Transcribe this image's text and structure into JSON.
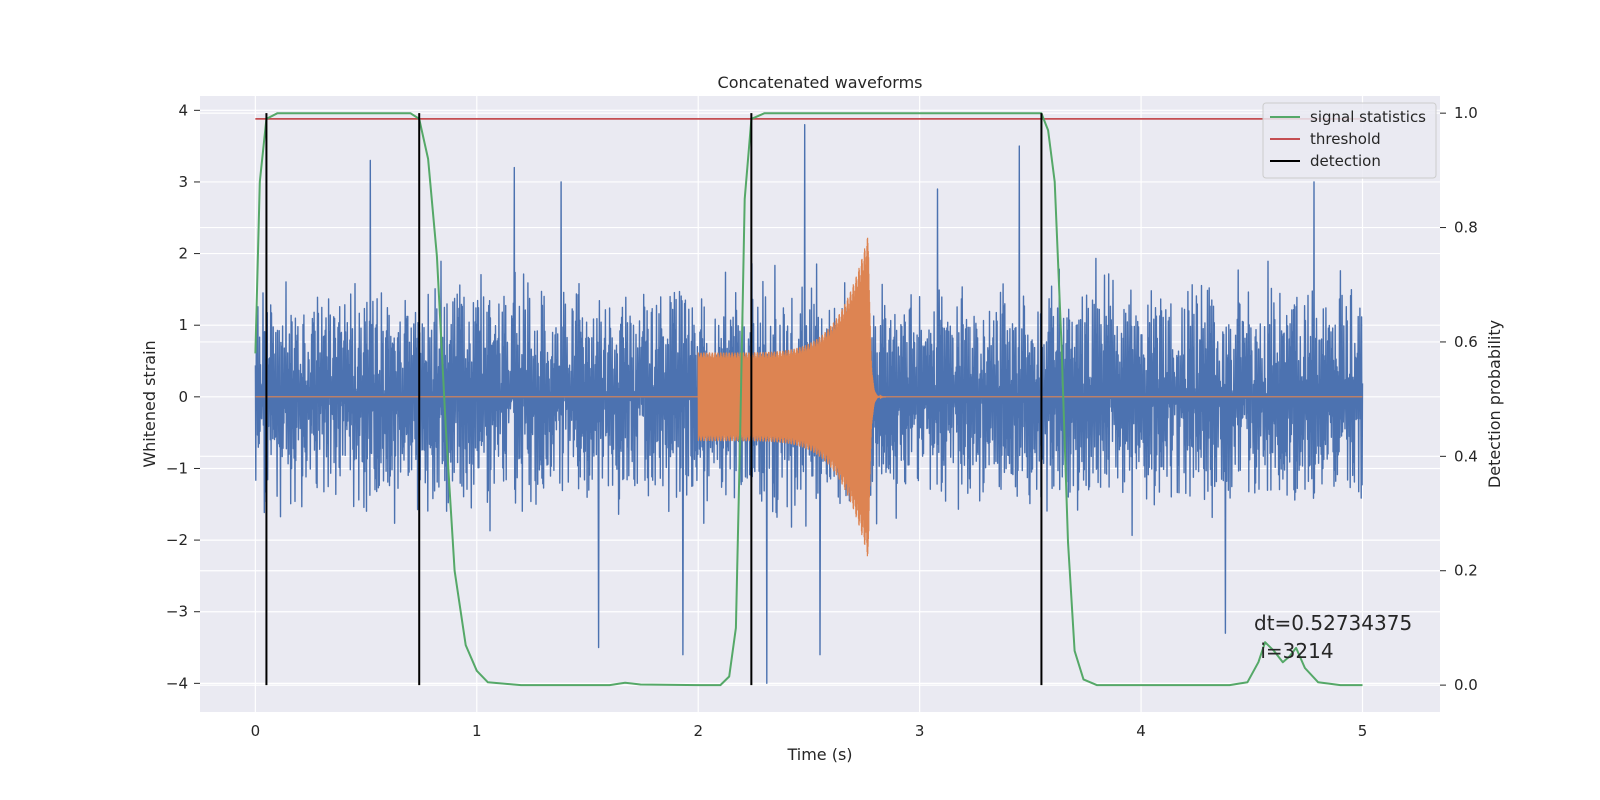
{
  "chart_data": {
    "type": "line",
    "title": "Concatenated waveforms",
    "xlabel": "Time (s)",
    "ylabel": "Whitened strain",
    "y2label": "Detection probability",
    "xlim": [
      -0.25,
      5.35
    ],
    "ylim": [
      -4.4,
      4.2
    ],
    "y2lim": [
      -0.047,
      1.03
    ],
    "x_ticks": [
      "0",
      "1",
      "2",
      "3",
      "4",
      "5"
    ],
    "y_ticks": [
      "−4",
      "−3",
      "−2",
      "−1",
      "0",
      "1",
      "2",
      "3",
      "4"
    ],
    "y2_ticks": [
      "0.0",
      "0.2",
      "0.4",
      "0.6",
      "0.8",
      "1.0"
    ],
    "grid": true,
    "legend_position": "upper right",
    "legend": [
      "signal statistics",
      "threshold",
      "detection"
    ],
    "series": [
      {
        "name": "noise strain",
        "color": "#4c72b0",
        "axis": "left",
        "x_range": [
          0,
          5
        ],
        "envelope": [
          1.5,
          2.3
        ],
        "peaks": [
          [
            0.52,
            3.3
          ],
          [
            1.17,
            3.2
          ],
          [
            1.38,
            3.0
          ],
          [
            2.48,
            3.8
          ],
          [
            2.55,
            -3.6
          ],
          [
            3.08,
            2.9
          ],
          [
            3.45,
            3.5
          ],
          [
            2.31,
            -4.0
          ],
          [
            1.93,
            -3.6
          ],
          [
            4.78,
            3.0
          ],
          [
            4.38,
            -3.3
          ],
          [
            1.55,
            -3.5
          ]
        ]
      },
      {
        "name": "injected waveform",
        "color": "#dd8452",
        "axis": "left",
        "t_start": 2.0,
        "t_merger": 2.77,
        "t_end": 3.05,
        "amp_start": 0.62,
        "amp_peak": 2.3,
        "x_range": [
          0,
          5
        ]
      },
      {
        "name": "signal statistics",
        "color": "#55a868",
        "axis": "right",
        "points": [
          [
            0.0,
            0.58
          ],
          [
            0.02,
            0.88
          ],
          [
            0.05,
            0.99
          ],
          [
            0.1,
            1.0
          ],
          [
            0.7,
            1.0
          ],
          [
            0.74,
            0.99
          ],
          [
            0.78,
            0.92
          ],
          [
            0.82,
            0.75
          ],
          [
            0.86,
            0.45
          ],
          [
            0.9,
            0.2
          ],
          [
            0.95,
            0.07
          ],
          [
            1.0,
            0.025
          ],
          [
            1.05,
            0.005
          ],
          [
            1.2,
            0.0
          ],
          [
            1.6,
            0.0
          ],
          [
            1.67,
            0.004
          ],
          [
            1.74,
            0.001
          ],
          [
            2.0,
            0.0
          ],
          [
            2.1,
            0.0
          ],
          [
            2.14,
            0.015
          ],
          [
            2.17,
            0.1
          ],
          [
            2.19,
            0.45
          ],
          [
            2.21,
            0.85
          ],
          [
            2.24,
            0.99
          ],
          [
            2.3,
            1.0
          ],
          [
            3.55,
            1.0
          ],
          [
            3.58,
            0.97
          ],
          [
            3.61,
            0.88
          ],
          [
            3.64,
            0.6
          ],
          [
            3.67,
            0.25
          ],
          [
            3.7,
            0.06
          ],
          [
            3.74,
            0.01
          ],
          [
            3.8,
            0.0
          ],
          [
            4.4,
            0.0
          ],
          [
            4.48,
            0.005
          ],
          [
            4.53,
            0.04
          ],
          [
            4.56,
            0.075
          ],
          [
            4.6,
            0.06
          ],
          [
            4.64,
            0.04
          ],
          [
            4.67,
            0.05
          ],
          [
            4.7,
            0.065
          ],
          [
            4.74,
            0.03
          ],
          [
            4.8,
            0.005
          ],
          [
            4.9,
            0.0
          ],
          [
            5.0,
            0.0
          ]
        ]
      },
      {
        "name": "threshold",
        "color": "#c44e52",
        "axis": "right",
        "value": 0.99,
        "x_range": [
          0,
          5
        ]
      },
      {
        "name": "detection",
        "color": "#000000",
        "axis": "right",
        "x_values": [
          0.05,
          0.74,
          2.24,
          3.55
        ],
        "range": [
          0.0,
          1.0
        ]
      }
    ],
    "annotation": {
      "lines": [
        "dt=0.52734375",
        " i=3214"
      ]
    }
  },
  "colors": {
    "axes_background": "#eaeaf2",
    "grid": "#ffffff",
    "text": "#262626"
  }
}
